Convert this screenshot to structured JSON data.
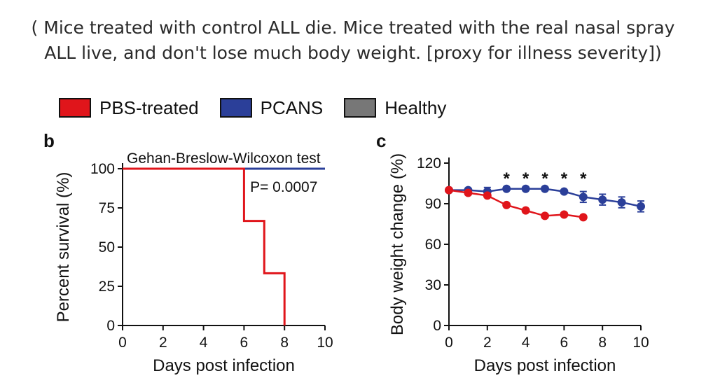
{
  "caption": {
    "line1": "( Mice treated with control ALL die. Mice treated with the real nasal spray",
    "line2": "ALL live, and don't lose much body weight. [proxy for illness severity])"
  },
  "legend": [
    {
      "label": "PBS-treated",
      "color": "#e0151b"
    },
    {
      "label": "PCANS",
      "color": "#2b3f99"
    },
    {
      "label": "Healthy",
      "color": "#777777"
    }
  ],
  "chart_data": [
    {
      "type": "line",
      "panel": "b",
      "step": true,
      "annotation": "Gehan-Breslow-Wilcoxon test",
      "pvalue": "P= 0.0007",
      "xlabel": "Days post infection",
      "ylabel": "Percent survival (%)",
      "xlim": [
        0,
        10
      ],
      "ylim": [
        0,
        100
      ],
      "xticks": [
        0,
        2,
        4,
        6,
        8,
        10
      ],
      "yticks": [
        0,
        25,
        50,
        75,
        100
      ],
      "series": [
        {
          "name": "PBS-treated",
          "color": "#e0151b",
          "x": [
            0,
            6,
            6,
            7,
            7,
            8,
            8
          ],
          "y": [
            100,
            100,
            66.7,
            66.7,
            33.3,
            33.3,
            0
          ]
        },
        {
          "name": "PCANS",
          "color": "#2b3f99",
          "x": [
            0,
            10
          ],
          "y": [
            100,
            100
          ]
        }
      ]
    },
    {
      "type": "line",
      "panel": "c",
      "xlabel": "Days post infection",
      "ylabel": "Body weight change (%)",
      "xlim": [
        0,
        10
      ],
      "ylim": [
        0,
        120
      ],
      "xticks": [
        0,
        2,
        4,
        6,
        8,
        10
      ],
      "yticks": [
        0,
        30,
        60,
        90,
        120
      ],
      "significance_marker": "*",
      "significant_x": [
        3,
        4,
        5,
        6,
        7
      ],
      "series": [
        {
          "name": "PCANS",
          "color": "#2b3f99",
          "x": [
            0,
            1,
            2,
            3,
            4,
            5,
            6,
            7,
            8,
            9,
            10
          ],
          "y": [
            100,
            100,
            99,
            101,
            101,
            101,
            99,
            95,
            93,
            91,
            88
          ],
          "err": [
            0,
            1,
            3,
            1,
            1,
            1,
            1,
            4,
            4,
            4,
            4
          ]
        },
        {
          "name": "PBS-treated",
          "color": "#e0151b",
          "x": [
            0,
            1,
            2,
            3,
            4,
            5,
            6,
            7
          ],
          "y": [
            100,
            98,
            96,
            89,
            85,
            81,
            82,
            80
          ],
          "err": [
            0,
            0,
            0,
            0,
            0,
            0,
            0,
            0
          ]
        }
      ]
    }
  ]
}
